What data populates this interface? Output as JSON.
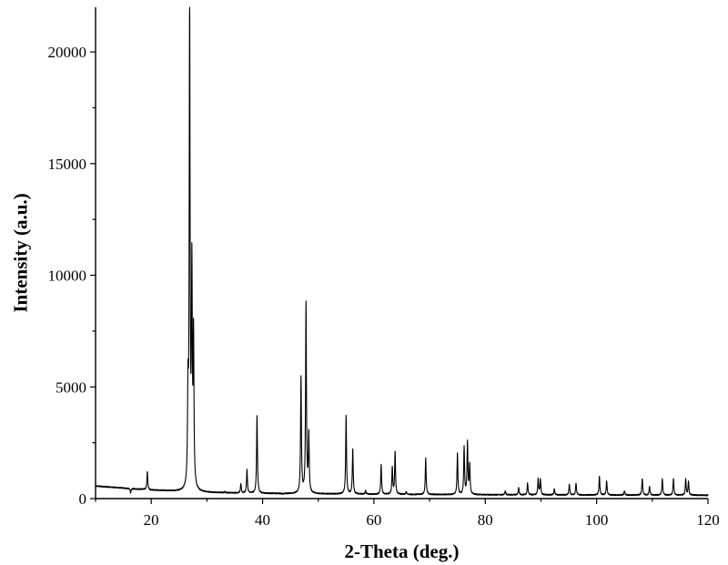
{
  "chart_data": {
    "type": "line",
    "title": "",
    "xlabel": "2-Theta (deg.)",
    "ylabel": "Intensity (a.u.)",
    "xlim": [
      10,
      120
    ],
    "ylim": [
      0,
      22000
    ],
    "xticks": [
      20,
      40,
      60,
      80,
      100,
      120
    ],
    "yticks": [
      0,
      5000,
      10000,
      15000,
      20000
    ],
    "grid": false,
    "legend": "none",
    "baseline": [
      [
        10,
        560
      ],
      [
        15,
        470
      ],
      [
        20,
        380
      ],
      [
        25,
        320
      ],
      [
        30,
        270
      ],
      [
        40,
        230
      ],
      [
        60,
        190
      ],
      [
        80,
        170
      ],
      [
        100,
        160
      ],
      [
        120,
        150
      ]
    ],
    "series": [
      {
        "values": [
          {
            "x": 16.3,
            "y": 260
          },
          {
            "x": 18.4,
            "y": 420
          },
          {
            "x": 19.3,
            "y": 1200
          },
          {
            "x": 26.6,
            "y": 4200
          },
          {
            "x": 26.9,
            "y": 21800
          },
          {
            "x": 27.3,
            "y": 9800
          },
          {
            "x": 27.6,
            "y": 6900
          },
          {
            "x": 33.2,
            "y": 300
          },
          {
            "x": 36.1,
            "y": 650
          },
          {
            "x": 37.2,
            "y": 1300
          },
          {
            "x": 39.0,
            "y": 3700
          },
          {
            "x": 42.0,
            "y": 230
          },
          {
            "x": 43.7,
            "y": 180
          },
          {
            "x": 46.9,
            "y": 5400
          },
          {
            "x": 47.8,
            "y": 8700
          },
          {
            "x": 48.3,
            "y": 2800
          },
          {
            "x": 55.0,
            "y": 3700
          },
          {
            "x": 56.2,
            "y": 2200
          },
          {
            "x": 58.5,
            "y": 350
          },
          {
            "x": 61.3,
            "y": 1500
          },
          {
            "x": 63.3,
            "y": 1400
          },
          {
            "x": 63.8,
            "y": 2100
          },
          {
            "x": 65.8,
            "y": 300
          },
          {
            "x": 69.3,
            "y": 1800
          },
          {
            "x": 75.0,
            "y": 2000
          },
          {
            "x": 76.2,
            "y": 2300
          },
          {
            "x": 76.8,
            "y": 2500
          },
          {
            "x": 77.2,
            "y": 1500
          },
          {
            "x": 83.6,
            "y": 350
          },
          {
            "x": 86.0,
            "y": 500
          },
          {
            "x": 87.6,
            "y": 700
          },
          {
            "x": 89.5,
            "y": 900
          },
          {
            "x": 89.9,
            "y": 850
          },
          {
            "x": 92.4,
            "y": 450
          },
          {
            "x": 95.1,
            "y": 650
          },
          {
            "x": 96.3,
            "y": 700
          },
          {
            "x": 100.5,
            "y": 1000
          },
          {
            "x": 101.8,
            "y": 800
          },
          {
            "x": 105.0,
            "y": 350
          },
          {
            "x": 108.2,
            "y": 900
          },
          {
            "x": 109.5,
            "y": 550
          },
          {
            "x": 111.8,
            "y": 900
          },
          {
            "x": 113.8,
            "y": 900
          },
          {
            "x": 116.0,
            "y": 900
          },
          {
            "x": 116.5,
            "y": 750
          }
        ]
      }
    ]
  }
}
